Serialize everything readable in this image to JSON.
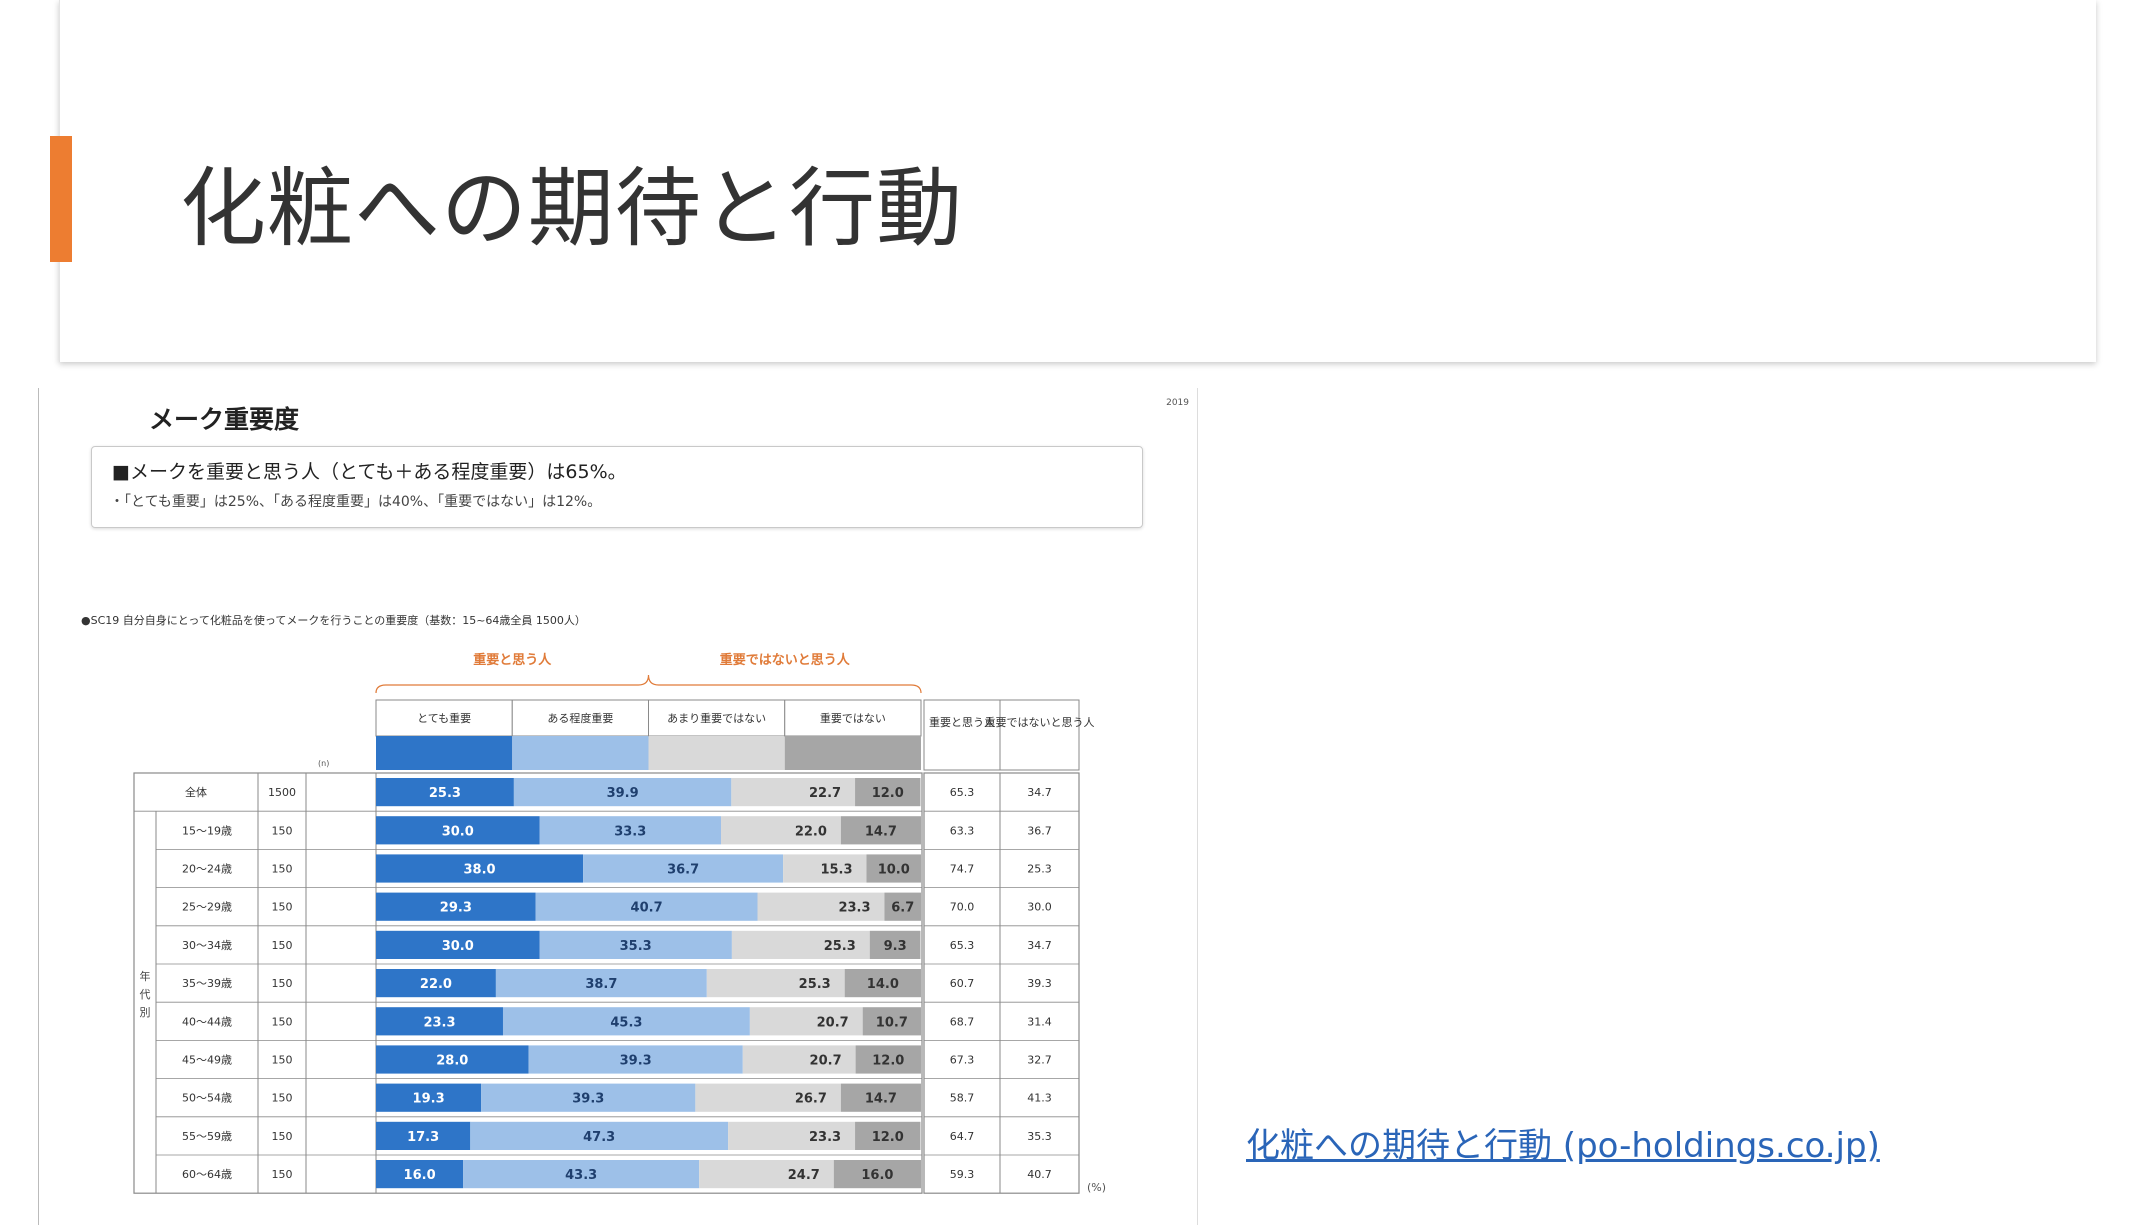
{
  "slide": {
    "title": "化粧への期待と行動",
    "link_text": "化粧への期待と行動 (po-holdings.co.jp)"
  },
  "panel": {
    "title": "メーク重要度",
    "year": "2019",
    "callout_main": "■メークを重要と思う人（とても＋ある程度重要）は65%。",
    "callout_sub": "・「とても重要」は25%、「ある程度重要」は40%、「重要ではない」は12%。",
    "question": "●SC19 自分自身にとって化粧品を使ってメークを行うことの重要度（基数：15~64歳全員 1500人）"
  },
  "colors": {
    "accent": "#ed7d31",
    "very_important": "#2e75c8",
    "somewhat_important": "#9dc0e8",
    "not_very": "#d9d9d9",
    "not_important": "#a6a6a6",
    "brace_label": "#e07b39"
  },
  "chart_data": {
    "type": "bar",
    "stacked": true,
    "orientation": "horizontal",
    "group_labels": [
      "重要と思う人",
      "重要ではないと思う人"
    ],
    "n_header": "(n)",
    "side_label": "年代別",
    "unit": "(%)",
    "series": [
      {
        "name": "とても重要",
        "values": [
          25.3,
          30.0,
          38.0,
          29.3,
          30.0,
          22.0,
          23.3,
          28.0,
          19.3,
          17.3,
          16.0
        ]
      },
      {
        "name": "ある程度重要",
        "values": [
          39.9,
          33.3,
          36.7,
          40.7,
          35.3,
          38.7,
          45.3,
          39.3,
          39.3,
          47.3,
          43.3
        ]
      },
      {
        "name": "あまり重要ではない",
        "values": [
          22.7,
          22.0,
          15.3,
          23.3,
          25.3,
          25.3,
          20.7,
          20.7,
          26.7,
          23.3,
          24.7
        ]
      },
      {
        "name": "重要ではない",
        "values": [
          12.0,
          14.7,
          10.0,
          6.7,
          9.3,
          14.0,
          10.7,
          12.0,
          14.7,
          12.0,
          16.0
        ]
      }
    ],
    "categories": [
      "全体",
      "15～19歳",
      "20～24歳",
      "25～29歳",
      "30～34歳",
      "35～39歳",
      "40～44歳",
      "45～49歳",
      "50～54歳",
      "55～59歳",
      "60～64歳"
    ],
    "n": [
      1500,
      150,
      150,
      150,
      150,
      150,
      150,
      150,
      150,
      150,
      150
    ],
    "summary_headers": [
      "重要と思う人",
      "重要ではないと思う人"
    ],
    "important_total": [
      65.3,
      63.3,
      74.7,
      70.0,
      65.3,
      60.7,
      68.7,
      67.3,
      58.7,
      64.7,
      59.3
    ],
    "not_important_total": [
      34.7,
      36.7,
      25.3,
      30.0,
      34.7,
      39.3,
      31.4,
      32.7,
      41.3,
      35.3,
      40.7
    ],
    "xlim": [
      0,
      100
    ]
  }
}
